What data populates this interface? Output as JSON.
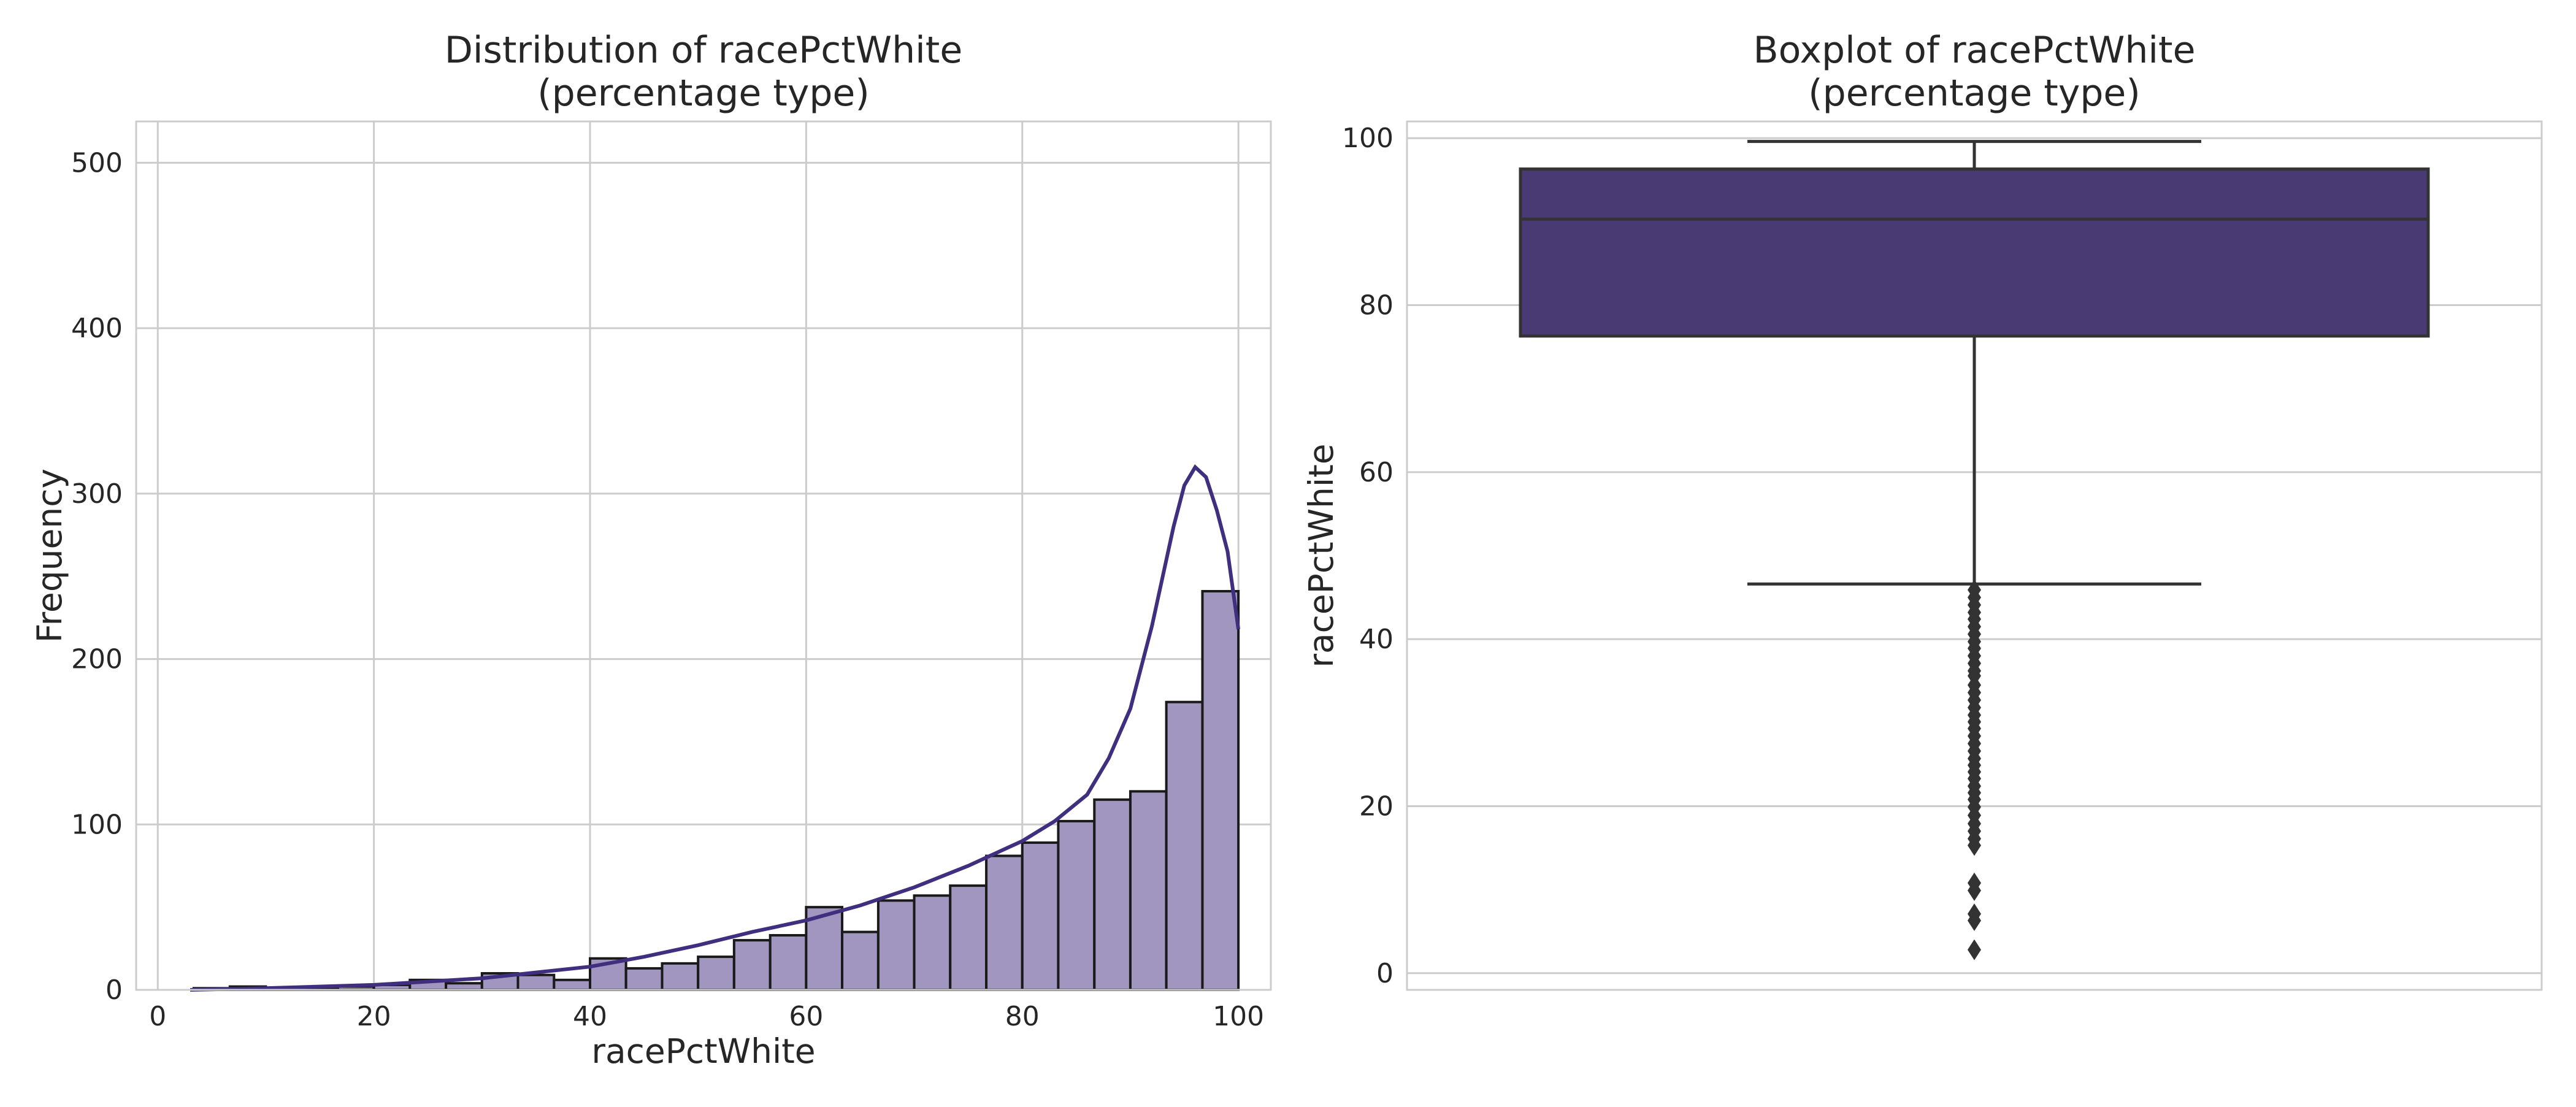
{
  "chart_data": [
    {
      "type": "bar",
      "subtype": "histogram",
      "title": "Distribution of racePctWhite\n(percentage type)",
      "xlabel": "racePctWhite",
      "ylabel": "Frequency",
      "xlim": [
        -2,
        103
      ],
      "ylim": [
        0,
        525
      ],
      "xticks": [
        0,
        20,
        40,
        60,
        80,
        100
      ],
      "yticks": [
        0,
        100,
        200,
        300,
        400,
        500
      ],
      "grid": true,
      "colors": {
        "bar_fill": "#a196bf",
        "bar_edge": "#1a1a1a",
        "kde": "#3f2f7e"
      },
      "bins": [
        {
          "x0": 0,
          "x1": 3.33,
          "count": 0
        },
        {
          "x0": 3.33,
          "x1": 6.67,
          "count": 1
        },
        {
          "x0": 6.67,
          "x1": 10,
          "count": 2
        },
        {
          "x0": 10,
          "x1": 13.33,
          "count": 1
        },
        {
          "x0": 13.33,
          "x1": 16.67,
          "count": 1
        },
        {
          "x0": 16.67,
          "x1": 20,
          "count": 2
        },
        {
          "x0": 20,
          "x1": 23.33,
          "count": 3
        },
        {
          "x0": 23.33,
          "x1": 26.67,
          "count": 6
        },
        {
          "x0": 26.67,
          "x1": 30,
          "count": 4
        },
        {
          "x0": 30,
          "x1": 33.33,
          "count": 10
        },
        {
          "x0": 33.33,
          "x1": 36.67,
          "count": 9
        },
        {
          "x0": 36.67,
          "x1": 40,
          "count": 6
        },
        {
          "x0": 40,
          "x1": 43.33,
          "count": 19
        },
        {
          "x0": 43.33,
          "x1": 46.67,
          "count": 13
        },
        {
          "x0": 46.67,
          "x1": 50,
          "count": 16
        },
        {
          "x0": 50,
          "x1": 53.33,
          "count": 20
        },
        {
          "x0": 53.33,
          "x1": 56.67,
          "count": 30
        },
        {
          "x0": 56.67,
          "x1": 60,
          "count": 33
        },
        {
          "x0": 60,
          "x1": 63.33,
          "count": 50
        },
        {
          "x0": 63.33,
          "x1": 66.67,
          "count": 35
        },
        {
          "x0": 66.67,
          "x1": 70,
          "count": 54
        },
        {
          "x0": 70,
          "x1": 73.33,
          "count": 57
        },
        {
          "x0": 73.33,
          "x1": 76.67,
          "count": 63
        },
        {
          "x0": 76.67,
          "x1": 80,
          "count": 81
        },
        {
          "x0": 80,
          "x1": 83.33,
          "count": 89
        },
        {
          "x0": 83.33,
          "x1": 86.67,
          "count": 102
        },
        {
          "x0": 86.67,
          "x1": 90,
          "count": 115
        },
        {
          "x0": 90,
          "x1": 93.33,
          "count": 120
        },
        {
          "x0": 93.33,
          "x1": 96.67,
          "count": 174
        },
        {
          "x0": 96.67,
          "x1": 100,
          "count": 241
        }
      ],
      "kde": {
        "x": [
          3,
          10,
          20,
          30,
          40,
          45,
          50,
          55,
          60,
          65,
          70,
          75,
          80,
          83,
          86,
          88,
          90,
          92,
          94,
          95,
          96,
          97,
          98,
          99,
          100
        ],
        "y": [
          0,
          1,
          3,
          7,
          14,
          20,
          27,
          35,
          42,
          51,
          62,
          75,
          90,
          102,
          118,
          140,
          170,
          220,
          280,
          305,
          316,
          310,
          290,
          265,
          218
        ]
      }
    },
    {
      "type": "box",
      "title": "Boxplot of racePctWhite\n(percentage type)",
      "xlabel": "",
      "ylabel": "racePctWhite",
      "ylim": [
        -2,
        102
      ],
      "yticks": [
        0,
        20,
        40,
        60,
        80,
        100
      ],
      "grid": true,
      "colors": {
        "box_fill": "#4a3a74",
        "line": "#333333",
        "outlier": "#333333"
      },
      "stats": {
        "whisker_low": 46.6,
        "q1": 76.3,
        "median": 90.3,
        "q3": 96.3,
        "whisker_high": 99.6
      },
      "outliers": [
        45.9,
        45.0,
        44.1,
        43.2,
        42.4,
        41.5,
        40.6,
        39.7,
        38.9,
        38.0,
        37.1,
        36.2,
        35.6,
        34.5,
        33.6,
        32.7,
        31.8,
        30.9,
        30.1,
        29.3,
        28.4,
        27.5,
        26.6,
        25.7,
        24.9,
        24.1,
        23.3,
        22.4,
        21.6,
        20.8,
        19.9,
        18.9,
        17.9,
        17.0,
        16.1,
        15.3,
        10.8,
        9.9,
        7.1,
        6.3,
        2.8
      ]
    }
  ]
}
